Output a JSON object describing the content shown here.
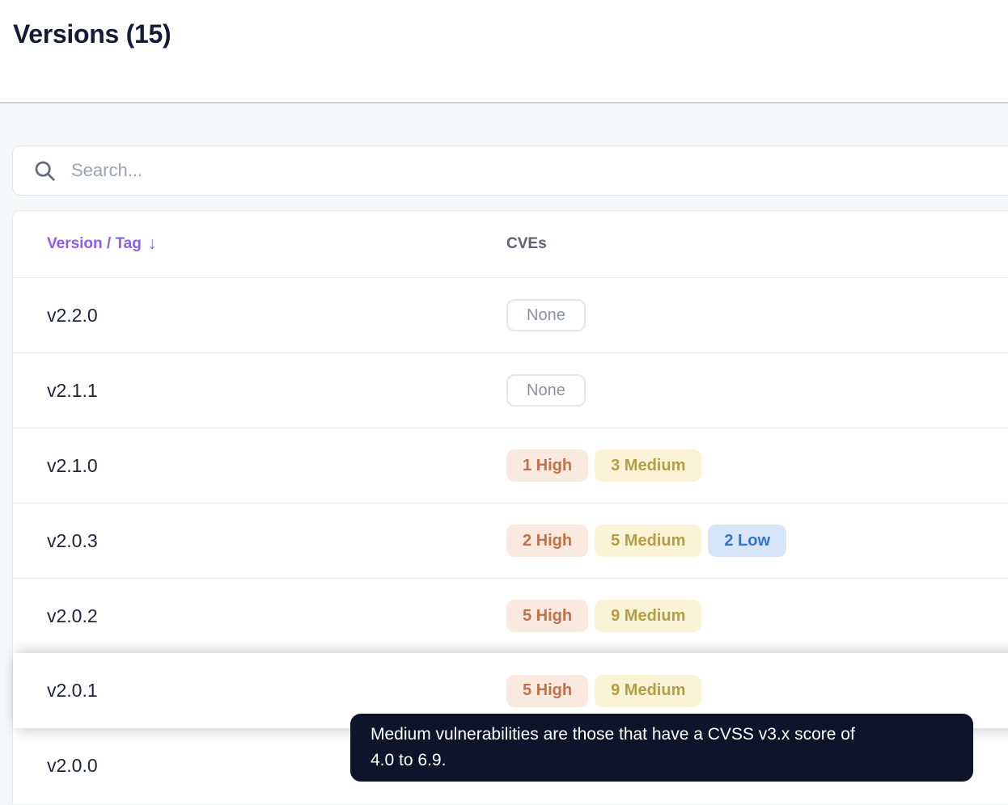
{
  "page": {
    "title": "Versions (15)"
  },
  "search": {
    "placeholder": "Search...",
    "icon": "search-icon"
  },
  "table": {
    "columns": [
      {
        "label": "Version / Tag",
        "sort_icon": "↓",
        "sorted": "desc"
      },
      {
        "label": "CVEs"
      }
    ],
    "rows": [
      {
        "version": "v2.2.0",
        "cves": [
          {
            "label": "None",
            "severity": "none"
          }
        ]
      },
      {
        "version": "v2.1.1",
        "cves": [
          {
            "label": "None",
            "severity": "none"
          }
        ]
      },
      {
        "version": "v2.1.0",
        "cves": [
          {
            "label": "1 High",
            "severity": "high"
          },
          {
            "label": "3 Medium",
            "severity": "medium"
          }
        ]
      },
      {
        "version": "v2.0.3",
        "cves": [
          {
            "label": "2 High",
            "severity": "high"
          },
          {
            "label": "5 Medium",
            "severity": "medium"
          },
          {
            "label": "2 Low",
            "severity": "low"
          }
        ]
      },
      {
        "version": "v2.0.2",
        "cves": [
          {
            "label": "5 High",
            "severity": "high"
          },
          {
            "label": "9 Medium",
            "severity": "medium"
          }
        ]
      },
      {
        "version": "v2.0.1",
        "cves": [
          {
            "label": "5 High",
            "severity": "high"
          },
          {
            "label": "9 Medium",
            "severity": "medium"
          }
        ],
        "hovered": true
      },
      {
        "version": "v2.0.0",
        "cves": []
      }
    ]
  },
  "tooltip": {
    "text": "Medium vulnerabilities are those that have a CVSS v3.x score of 4.0 to 6.9.",
    "line1": "Medium vulnerabilities are those that have a CVSS v3.x score of",
    "line2": "4.0 to 6.9."
  },
  "colors": {
    "accent_purple": "#8B5CF6",
    "high_bg": "#FAE9DE",
    "high_text": "#C0714A",
    "medium_bg": "#FAF3D6",
    "medium_text": "#B29E44",
    "low_bg": "#D6E6F8",
    "low_text": "#3273CF",
    "none_border": "#E4E6EA",
    "none_text": "#8A90A0",
    "tooltip_bg": "#0E152B",
    "title_text": "#131C36",
    "page_bg": "#F6F7F8"
  }
}
